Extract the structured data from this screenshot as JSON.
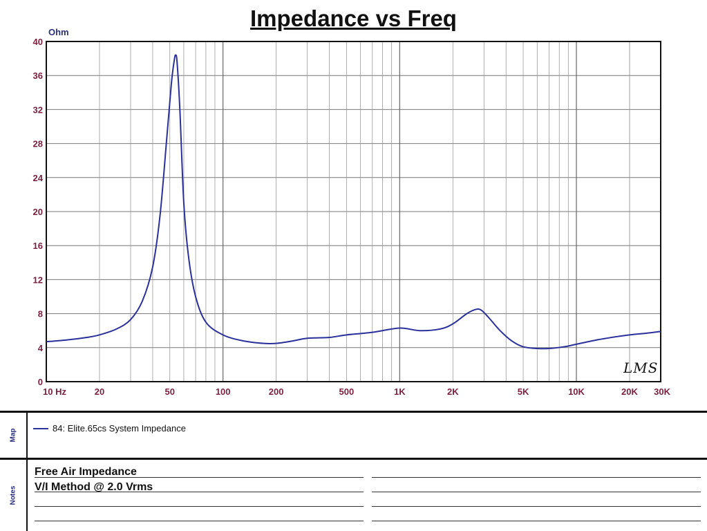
{
  "chart_data": {
    "type": "line",
    "title": "Impedance vs Freq",
    "ylabel": "Ohm",
    "xlabel": "",
    "xscale": "log",
    "xlim": [
      10,
      30000
    ],
    "ylim": [
      0,
      40
    ],
    "grid": true,
    "y_ticks": [
      0,
      4,
      8,
      12,
      16,
      20,
      24,
      28,
      32,
      36,
      40
    ],
    "y_tick_labels": [
      "0",
      "4",
      "8",
      "12",
      "16",
      "20",
      "24",
      "28",
      "32",
      "36",
      "40"
    ],
    "x_ticks": [
      10,
      20,
      50,
      100,
      200,
      500,
      1000,
      2000,
      5000,
      10000,
      20000,
      30000
    ],
    "x_tick_labels": [
      "10 Hz",
      "20",
      "50",
      "100",
      "200",
      "500",
      "1K",
      "2K",
      "5K",
      "10K",
      "20K",
      "30K"
    ],
    "color": "#2a2f9a",
    "series": [
      {
        "name": "84: Elite.65cs System Impedance",
        "x": [
          10,
          13,
          17,
          20,
          25,
          30,
          35,
          40,
          44,
          48,
          51,
          53,
          54,
          55,
          57,
          60,
          64,
          70,
          80,
          100,
          130,
          170,
          200,
          250,
          300,
          400,
          500,
          700,
          1000,
          1300,
          1700,
          2000,
          2400,
          2700,
          2900,
          3200,
          3700,
          4300,
          5000,
          6000,
          7000,
          8500,
          10000,
          13000,
          17000,
          20000,
          25000,
          30000
        ],
        "y": [
          4.7,
          4.9,
          5.2,
          5.5,
          6.2,
          7.3,
          9.5,
          13.5,
          19.5,
          28.5,
          35.0,
          37.8,
          38.4,
          37.5,
          32.0,
          21.0,
          14.5,
          10.0,
          7.0,
          5.5,
          4.8,
          4.5,
          4.5,
          4.8,
          5.1,
          5.2,
          5.5,
          5.8,
          6.3,
          6.0,
          6.2,
          6.8,
          8.0,
          8.5,
          8.4,
          7.5,
          6.0,
          4.8,
          4.1,
          3.9,
          3.9,
          4.1,
          4.4,
          4.9,
          5.3,
          5.5,
          5.7,
          5.9
        ]
      }
    ]
  },
  "map": {
    "section_label": "Map",
    "legend_label": "84: Elite.65cs System Impedance"
  },
  "notes": {
    "section_label": "Notes",
    "lines": [
      "Free Air Impedance",
      "V/I Method @ 2.0 Vrms"
    ]
  },
  "brand": "LMS"
}
